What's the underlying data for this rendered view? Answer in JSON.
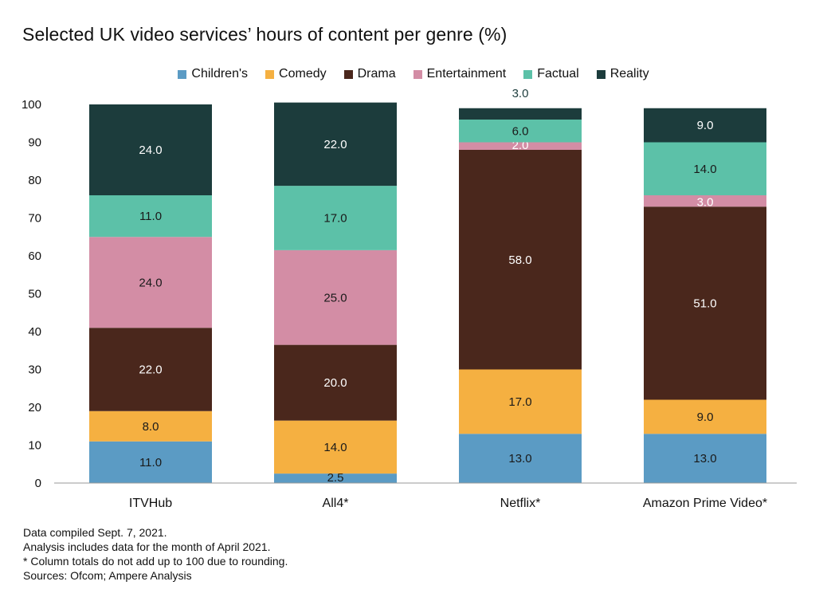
{
  "chart_data": {
    "type": "bar",
    "stacked": true,
    "title": "Selected UK video services’ hours of content per genre (%)",
    "xlabel": "",
    "ylabel": "",
    "ylim": [
      0,
      100
    ],
    "yticks": [
      0,
      10,
      20,
      30,
      40,
      50,
      60,
      70,
      80,
      90,
      100
    ],
    "categories": [
      "ITVHub",
      "All4*",
      "Netflix*",
      "Amazon Prime Video*"
    ],
    "series": [
      {
        "name": "Children's",
        "color": "#5b9bc4",
        "label_color": "#1a1a1a",
        "values": [
          11.0,
          2.5,
          13.0,
          13.0
        ]
      },
      {
        "name": "Comedy",
        "color": "#f5b041",
        "label_color": "#1a1a1a",
        "values": [
          8.0,
          14.0,
          17.0,
          9.0
        ]
      },
      {
        "name": "Drama",
        "color": "#4a271c",
        "label_color": "#ffffff",
        "values": [
          22.0,
          20.0,
          58.0,
          51.0
        ]
      },
      {
        "name": "Entertainment",
        "color": "#d38da5",
        "label_color": "#1a1a1a",
        "values": [
          24.0,
          25.0,
          2.0,
          3.0
        ]
      },
      {
        "name": "Factual",
        "color": "#5cc1a8",
        "label_color": "#1a1a1a",
        "values": [
          11.0,
          17.0,
          6.0,
          14.0
        ]
      },
      {
        "name": "Reality",
        "color": "#1c3c3c",
        "label_color": "#ffffff",
        "values": [
          24.0,
          22.0,
          3.0,
          9.0
        ]
      }
    ],
    "data_labels": [
      [
        "11.0",
        "2.5",
        "13.0",
        "13.0"
      ],
      [
        "8.0",
        "14.0",
        "17.0",
        "9.0"
      ],
      [
        "22.0",
        "20.0",
        "58.0",
        "51.0"
      ],
      [
        "24.0",
        "25.0",
        "2.0",
        "3.0"
      ],
      [
        "11.0",
        "17.0",
        "6.0",
        "14.0"
      ],
      [
        "24.0",
        "22.0",
        "3.0",
        "9.0"
      ]
    ]
  },
  "notes": [
    "Data compiled Sept. 7, 2021.",
    "Analysis includes data for the month of April 2021.",
    "* Column totals do not add up to 100 due to rounding.",
    "Sources: Ofcom; Ampere Analysis"
  ]
}
